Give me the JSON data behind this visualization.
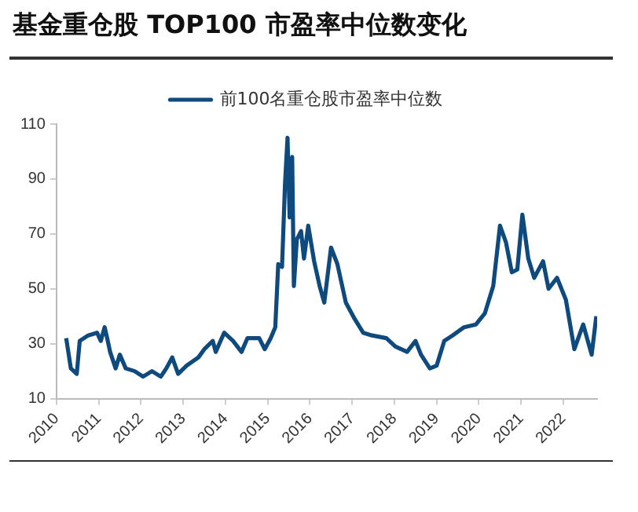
{
  "chart_data": {
    "type": "line",
    "title": "基金重仓股 TOP100 市盈率中位数变化",
    "series": [
      {
        "name": "前100名重仓股市盈率中位数",
        "color": "#0e4a7e",
        "x": [
          2010.23,
          2010.34,
          2010.48,
          2010.55,
          2010.75,
          2010.96,
          2011.05,
          2011.14,
          2011.2,
          2011.27,
          2011.4,
          2011.5,
          2011.64,
          2011.85,
          2012.05,
          2012.26,
          2012.47,
          2012.6,
          2012.74,
          2012.88,
          2013.08,
          2013.36,
          2013.5,
          2013.7,
          2013.77,
          2013.97,
          2014.18,
          2014.38,
          2014.52,
          2014.8,
          2014.93,
          2015.07,
          2015.18,
          2015.25,
          2015.34,
          2015.41,
          2015.47,
          2015.52,
          2015.58,
          2015.62,
          2015.69,
          2015.79,
          2015.86,
          2015.96,
          2016.1,
          2016.23,
          2016.34,
          2016.5,
          2016.65,
          2016.85,
          2017.06,
          2017.26,
          2017.47,
          2017.81,
          2018.02,
          2018.3,
          2018.5,
          2018.63,
          2018.84,
          2019.0,
          2019.18,
          2019.38,
          2019.65,
          2019.93,
          2020.14,
          2020.34,
          2020.5,
          2020.64,
          2020.78,
          2020.91,
          2021.03,
          2021.17,
          2021.31,
          2021.52,
          2021.65,
          2021.85,
          2022.06,
          2022.26,
          2022.47,
          2022.67,
          2022.78
        ],
        "values": [
          32,
          21,
          19,
          31,
          33,
          34,
          31,
          36,
          32,
          27,
          21,
          26,
          21,
          20,
          18,
          20,
          18,
          21,
          25,
          19,
          22,
          25,
          28,
          31,
          27,
          34,
          31,
          27,
          32,
          32,
          28,
          32,
          36,
          59,
          58,
          88,
          105,
          76,
          98,
          51,
          68,
          71,
          61,
          73,
          60,
          51,
          45,
          65,
          59,
          45,
          39,
          34,
          33,
          32,
          29,
          27,
          31,
          26,
          21,
          22,
          31,
          33,
          36,
          37,
          41,
          51,
          73,
          67,
          56,
          57,
          77,
          61,
          54,
          60,
          50,
          54,
          46,
          28,
          37,
          26,
          40
        ]
      }
    ],
    "xlim": [
      2010,
      2022.8
    ],
    "xticks": [
      2010,
      2011,
      2012,
      2013,
      2014,
      2015,
      2016,
      2017,
      2018,
      2019,
      2020,
      2021,
      2022
    ],
    "ylim": [
      10,
      110
    ],
    "yticks": [
      10,
      30,
      50,
      70,
      90,
      110
    ],
    "legend": "top",
    "grid": false,
    "marker": "none",
    "line_style": "solid"
  }
}
